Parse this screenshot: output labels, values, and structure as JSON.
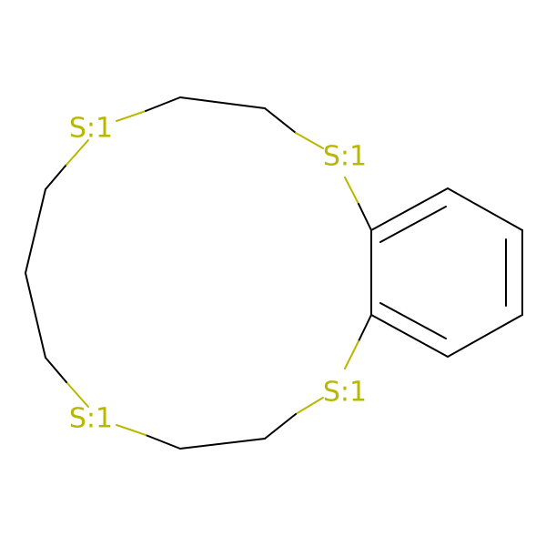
{
  "molecule": {
    "heteroatom_color": "#b8b800",
    "bond_color": "#000000",
    "atoms": [
      {
        "id": "s1",
        "label": "S:1"
      },
      {
        "id": "s2",
        "label": "S:1"
      },
      {
        "id": "s3",
        "label": "S:1"
      },
      {
        "id": "s4",
        "label": "S:1"
      }
    ]
  }
}
